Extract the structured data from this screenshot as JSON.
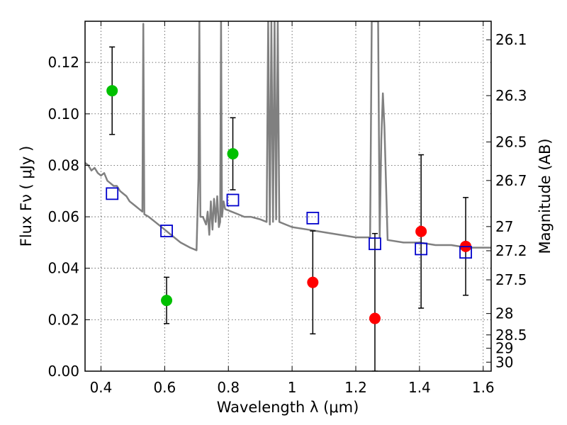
{
  "chart_data": {
    "type": "scatter",
    "xlabel": "Wavelength  λ (μm)",
    "ylabel": "Flux  Fν  ( μJy )",
    "ylabel_right": "Magnitude (AB)",
    "xlim": [
      0.35,
      1.625
    ],
    "ylim": [
      0.0,
      0.136
    ],
    "grid": true,
    "x_ticks": [
      0.4,
      0.6,
      0.8,
      1.0,
      1.2,
      1.4,
      1.6
    ],
    "x_tick_labels": [
      "0.4",
      "0.6",
      "0.8",
      "1",
      "1.2",
      "1.4",
      "1.6"
    ],
    "y_ticks": [
      0.0,
      0.02,
      0.04,
      0.06,
      0.08,
      0.1,
      0.12
    ],
    "y_tick_labels": [
      "0.00",
      "0.02",
      "0.04",
      "0.06",
      "0.08",
      "0.10",
      "0.12"
    ],
    "right_ticks": [
      {
        "label": "26.1",
        "flux": 0.1288
      },
      {
        "label": "26.3",
        "flux": 0.1071
      },
      {
        "label": "26.5",
        "flux": 0.0891
      },
      {
        "label": "26.7",
        "flux": 0.0741
      },
      {
        "label": "27",
        "flux": 0.0562
      },
      {
        "label": "27.2",
        "flux": 0.0468
      },
      {
        "label": "27.5",
        "flux": 0.0355
      },
      {
        "label": "28",
        "flux": 0.0224
      },
      {
        "label": "28.5",
        "flux": 0.0141
      },
      {
        "label": "29",
        "flux": 0.0089
      },
      {
        "label": "30",
        "flux": 0.0035
      }
    ],
    "series": [
      {
        "marker": "circle",
        "color": "#00c000",
        "points": [
          {
            "x": 0.435,
            "y": 0.109,
            "yerr_low": 0.092,
            "yerr_high": 0.126
          },
          {
            "x": 0.606,
            "y": 0.0275,
            "yerr_low": 0.0185,
            "yerr_high": 0.0365
          },
          {
            "x": 0.814,
            "y": 0.0845,
            "yerr_low": 0.0705,
            "yerr_high": 0.0985
          }
        ]
      },
      {
        "marker": "circle",
        "color": "#ff0000",
        "points": [
          {
            "x": 1.065,
            "y": 0.0345,
            "yerr_low": 0.0145,
            "yerr_high": 0.0545
          },
          {
            "x": 1.26,
            "y": 0.0205,
            "yerr_low": 0.0,
            "yerr_high": 0.0535
          },
          {
            "x": 1.405,
            "y": 0.0543,
            "yerr_low": 0.0245,
            "yerr_high": 0.0841
          },
          {
            "x": 1.545,
            "y": 0.0485,
            "yerr_low": 0.0295,
            "yerr_high": 0.0675
          }
        ]
      },
      {
        "marker": "open-square",
        "color": "#0000cc",
        "points": [
          {
            "x": 0.435,
            "y": 0.069
          },
          {
            "x": 0.606,
            "y": 0.0545
          },
          {
            "x": 0.814,
            "y": 0.0665
          },
          {
            "x": 1.065,
            "y": 0.0595
          },
          {
            "x": 1.26,
            "y": 0.0495
          },
          {
            "x": 1.405,
            "y": 0.0475
          },
          {
            "x": 1.545,
            "y": 0.0462
          }
        ]
      },
      {
        "type": "line",
        "color": "#808080",
        "points": [
          [
            0.35,
            0.081
          ],
          [
            0.36,
            0.08
          ],
          [
            0.37,
            0.078
          ],
          [
            0.38,
            0.079
          ],
          [
            0.39,
            0.077
          ],
          [
            0.4,
            0.076
          ],
          [
            0.41,
            0.077
          ],
          [
            0.42,
            0.074
          ],
          [
            0.43,
            0.073
          ],
          [
            0.44,
            0.072
          ],
          [
            0.45,
            0.072
          ],
          [
            0.46,
            0.07
          ],
          [
            0.47,
            0.069
          ],
          [
            0.48,
            0.068
          ],
          [
            0.49,
            0.066
          ],
          [
            0.5,
            0.065
          ],
          [
            0.51,
            0.064
          ],
          [
            0.52,
            0.063
          ],
          [
            0.53,
            0.062
          ],
          [
            0.533,
            0.135
          ],
          [
            0.536,
            0.061
          ],
          [
            0.55,
            0.06
          ],
          [
            0.57,
            0.058
          ],
          [
            0.6,
            0.055
          ],
          [
            0.62,
            0.053
          ],
          [
            0.65,
            0.05
          ],
          [
            0.68,
            0.048
          ],
          [
            0.7,
            0.047
          ],
          [
            0.706,
            0.075
          ],
          [
            0.709,
            0.136
          ],
          [
            0.712,
            0.06
          ],
          [
            0.72,
            0.06
          ],
          [
            0.73,
            0.057
          ],
          [
            0.735,
            0.062
          ],
          [
            0.74,
            0.053
          ],
          [
            0.745,
            0.066
          ],
          [
            0.75,
            0.055
          ],
          [
            0.755,
            0.067
          ],
          [
            0.76,
            0.058
          ],
          [
            0.765,
            0.068
          ],
          [
            0.77,
            0.056
          ],
          [
            0.774,
            0.058
          ],
          [
            0.777,
            0.136
          ],
          [
            0.78,
            0.06
          ],
          [
            0.785,
            0.066
          ],
          [
            0.79,
            0.063
          ],
          [
            0.81,
            0.062
          ],
          [
            0.83,
            0.061
          ],
          [
            0.85,
            0.06
          ],
          [
            0.87,
            0.06
          ],
          [
            0.9,
            0.059
          ],
          [
            0.92,
            0.058
          ],
          [
            0.925,
            0.136
          ],
          [
            0.93,
            0.057
          ],
          [
            0.935,
            0.136
          ],
          [
            0.94,
            0.058
          ],
          [
            0.945,
            0.136
          ],
          [
            0.95,
            0.059
          ],
          [
            0.955,
            0.136
          ],
          [
            0.96,
            0.058
          ],
          [
            0.98,
            0.057
          ],
          [
            1.0,
            0.056
          ],
          [
            1.05,
            0.055
          ],
          [
            1.1,
            0.054
          ],
          [
            1.15,
            0.053
          ],
          [
            1.2,
            0.052
          ],
          [
            1.245,
            0.052
          ],
          [
            1.25,
            0.136
          ],
          [
            1.27,
            0.136
          ],
          [
            1.275,
            0.052
          ],
          [
            1.28,
            0.09
          ],
          [
            1.285,
            0.108
          ],
          [
            1.29,
            0.095
          ],
          [
            1.3,
            0.051
          ],
          [
            1.35,
            0.05
          ],
          [
            1.4,
            0.05
          ],
          [
            1.45,
            0.049
          ],
          [
            1.5,
            0.049
          ],
          [
            1.55,
            0.048
          ],
          [
            1.6,
            0.048
          ],
          [
            1.625,
            0.048
          ]
        ]
      }
    ]
  }
}
